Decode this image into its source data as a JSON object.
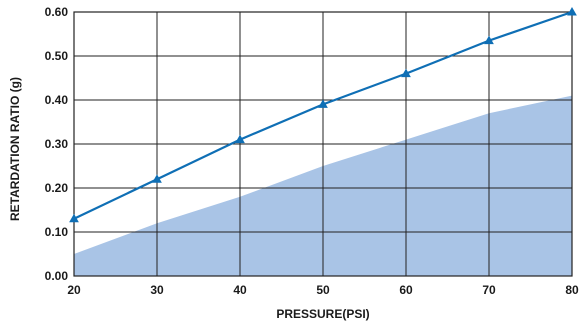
{
  "chart_data": {
    "type": "line",
    "xlabel": "PRESSURE(PSI)",
    "ylabel": "RETARDATION RATIO (g)",
    "xlim": [
      20,
      80
    ],
    "ylim": [
      0,
      0.6
    ],
    "x_ticks": [
      "20",
      "30",
      "40",
      "50",
      "60",
      "70",
      "80"
    ],
    "y_ticks": [
      "0.00",
      "0.10",
      "0.20",
      "0.30",
      "0.40",
      "0.50",
      "0.60"
    ],
    "grid": true,
    "series": [
      {
        "type": "line",
        "color": "#0f6fb5",
        "marker": "triangle",
        "x": [
          20,
          30,
          40,
          50,
          60,
          70,
          80
        ],
        "y": [
          0.13,
          0.22,
          0.31,
          0.39,
          0.46,
          0.535,
          0.6
        ]
      },
      {
        "type": "area",
        "color": "#a9c4e6",
        "x": [
          20,
          30,
          40,
          50,
          60,
          70,
          80
        ],
        "y": [
          0.05,
          0.12,
          0.18,
          0.25,
          0.31,
          0.37,
          0.41
        ]
      }
    ]
  }
}
